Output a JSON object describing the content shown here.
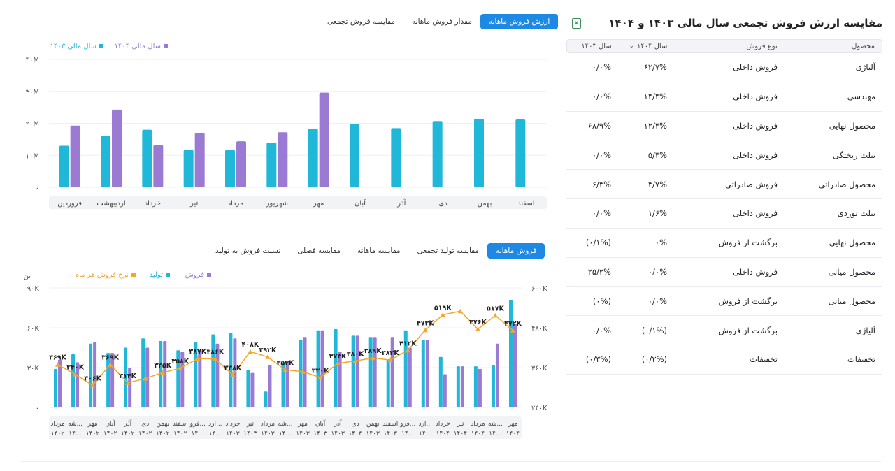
{
  "panel": {
    "title": "مقایسه ارزش فروش تجمعی سال مالی ۱۴۰۳ و ۱۴۰۴",
    "excel_icon": "excel-icon",
    "headers": {
      "product": "محصول",
      "sale_type": "نوع فروش",
      "year_1404": "سال ۱۴۰۴",
      "year_1403": "سال ۱۴۰۳"
    },
    "rows": [
      {
        "product": "آلیاژی",
        "sale_type": "فروش داخلی",
        "y1404": "۶۲/۷%",
        "y1403": "۰/۰%"
      },
      {
        "product": "مهندسی",
        "sale_type": "فروش داخلی",
        "y1404": "۱۴/۴%",
        "y1403": "۰/۰%"
      },
      {
        "product": "محصول نهایی",
        "sale_type": "فروش داخلی",
        "y1404": "۱۲/۴%",
        "y1403": "۶۸/۹%"
      },
      {
        "product": "بیلت ریختگی",
        "sale_type": "فروش داخلی",
        "y1404": "۵/۴%",
        "y1403": "۰/۰%"
      },
      {
        "product": "محصول صادراتی",
        "sale_type": "فروش صادراتی",
        "y1404": "۳/۷%",
        "y1403": "۶/۳%"
      },
      {
        "product": "بیلت نوردی",
        "sale_type": "فروش داخلی",
        "y1404": "۱/۶%",
        "y1403": "۰/۰%"
      },
      {
        "product": "محصول نهایی",
        "sale_type": "برگشت از فروش",
        "y1404": "۰%",
        "y1403": "(۰/۱%)"
      },
      {
        "product": "محصول میانی",
        "sale_type": "فروش داخلی",
        "y1404": "۰/۰%",
        "y1403": "۲۵/۲%"
      },
      {
        "product": "محصول میانی",
        "sale_type": "برگشت از فروش",
        "y1404": "۰/۰%",
        "y1403": "(۰%)"
      },
      {
        "product": "آلیاژی",
        "sale_type": "برگشت از فروش",
        "y1404": "(۰/۱%)",
        "y1403": "۰/۰%"
      },
      {
        "product": "تخفیفات",
        "sale_type": "تخفیفات",
        "y1404": "(۰/۲%)",
        "y1403": "(۰/۳%)"
      }
    ]
  },
  "top_tabs": [
    {
      "label": "ارزش فروش ماهانه",
      "active": true
    },
    {
      "label": "مقدار فروش ماهانه",
      "active": false
    },
    {
      "label": "مقایسه فروش تجمعی",
      "active": false
    }
  ],
  "bottom_tabs": [
    {
      "label": "فروش ماهانه",
      "active": true
    },
    {
      "label": "مقایسه تولید تجمعی",
      "active": false
    },
    {
      "label": "مقایسه ماهانه",
      "active": false
    },
    {
      "label": "مقایسه فصلی",
      "active": false
    },
    {
      "label": "نسبت فروش به تولید",
      "active": false
    }
  ],
  "colors": {
    "cyan": "#1fb8d9",
    "purple": "#9b7ad4",
    "orange": "#f4a72a",
    "accent": "#1e88e5"
  },
  "chart_data": [
    {
      "type": "bar",
      "legend": [
        "سال مالی ۱۴۰۳",
        "سال مالی ۱۴۰۴"
      ],
      "y_ticks": [
        "۰",
        "۱۰M",
        "۲۰M",
        "۳۰M",
        "۴۰M"
      ],
      "ylim": [
        0,
        40
      ],
      "categories": [
        "فروردین",
        "اردیبهشت",
        "خرداد",
        "تیر",
        "مرداد",
        "شهریور",
        "مهر",
        "آبان",
        "آذر",
        "دی",
        "بهمن",
        "اسفند"
      ],
      "series": [
        {
          "name": "سال مالی ۱۴۰۳",
          "values": [
            13,
            16,
            18,
            11.7,
            11.7,
            14,
            18.3,
            19.7,
            18.5,
            20.7,
            21.4,
            21.2
          ]
        },
        {
          "name": "سال مالی ۱۴۰۴",
          "values": [
            19.3,
            24.3,
            13.2,
            17,
            14.4,
            17.2,
            29.6,
            null,
            null,
            null,
            null,
            null
          ]
        }
      ]
    },
    {
      "type": "bar+line",
      "legend": [
        "فروش",
        "تولید",
        "نرخ فروش هر ماه"
      ],
      "y_unit": "تن",
      "left_ticks": [
        "۰",
        "۳۰K",
        "۶۰K",
        "۹۰K"
      ],
      "left_ylim": [
        0,
        90
      ],
      "right_ticks": [
        "۲۴۰K",
        "۳۶۰K",
        "۴۸۰K",
        "۶۰۰K"
      ],
      "right_ylim": [
        240,
        600
      ],
      "categories": [
        [
          "مرداد",
          "۱۴۰۲"
        ],
        [
          "شه...",
          "۱۴..."
        ],
        [
          "مهر",
          "۱۴۰۲"
        ],
        [
          "آبان",
          "۱۴۰۲"
        ],
        [
          "آذر",
          "۱۴۰۲"
        ],
        [
          "دی",
          "۱۴۰۲"
        ],
        [
          "بهمن",
          "۱۴۰۲"
        ],
        [
          "اسفند",
          "۱۴۰۲"
        ],
        [
          "فرو...",
          "۱۴..."
        ],
        [
          "ارد...",
          "۱۴..."
        ],
        [
          "خرداد",
          "۱۴۰۳"
        ],
        [
          "تیر",
          "۱۴۰۳"
        ],
        [
          "مرداد",
          "۱۴۰۳"
        ],
        [
          "شه...",
          "۱۴..."
        ],
        [
          "مهر",
          "۱۴۰۳"
        ],
        [
          "آبان",
          "۱۴۰۳"
        ],
        [
          "آذر",
          "۱۴۰۳"
        ],
        [
          "دی",
          "۱۴۰۳"
        ],
        [
          "بهمن",
          "۱۴۰۳"
        ],
        [
          "اسفند",
          "۱۴۰۳"
        ],
        [
          "فرو...",
          "۱۴..."
        ],
        [
          "ارد...",
          "۱۴..."
        ],
        [
          "خرداد",
          "۱۴۰۴"
        ],
        [
          "تیر",
          "۱۴۰۴"
        ],
        [
          "مرداد",
          "۱۴۰۴"
        ],
        [
          "شه...",
          "۱۴..."
        ],
        [
          "مهر",
          "۱۴۰۴"
        ]
      ],
      "production": [
        29,
        40,
        48,
        41,
        45,
        52,
        50,
        43,
        49,
        55,
        56,
        28,
        12,
        34,
        51,
        58,
        59,
        54,
        53,
        36,
        58,
        51,
        38,
        31,
        31,
        32,
        81
      ],
      "sales": [
        36,
        34,
        49,
        41,
        30,
        45,
        50,
        42,
        43,
        48,
        52,
        26,
        32,
        34,
        53,
        58,
        42,
        54,
        53,
        53,
        45,
        51,
        25,
        31,
        29,
        48,
        63
      ],
      "rate": [
        369,
        340,
        306,
        369,
        314,
        327,
        345,
        358,
        387,
        386,
        338,
        408,
        392,
        353,
        348,
        330,
        373,
        380,
        389,
        383,
        412,
        473,
        519,
        530,
        476,
        517,
        472
      ],
      "rate_labels": [
        "۳۶۹K",
        "۳۴۰K",
        "۳۰۶K",
        "۳۶۹K",
        "۳۱۴K",
        "",
        "۳۴۵K",
        "۳۵۸K",
        "۳۸۷K",
        "۳۸۶K",
        "۳۳۸K",
        "۴۰۸K",
        "۳۹۲K",
        "۳۵۳K",
        "",
        "۳۳۰K",
        "۳۷۳K",
        "۳۸۰K",
        "۳۸۹K",
        "۳۸۳K",
        "۴۱۲K",
        "۴۷۳K",
        "۵۱۹K",
        "",
        "۴۷۶K",
        "۵۱۷K",
        "۴۷۲K"
      ]
    }
  ]
}
